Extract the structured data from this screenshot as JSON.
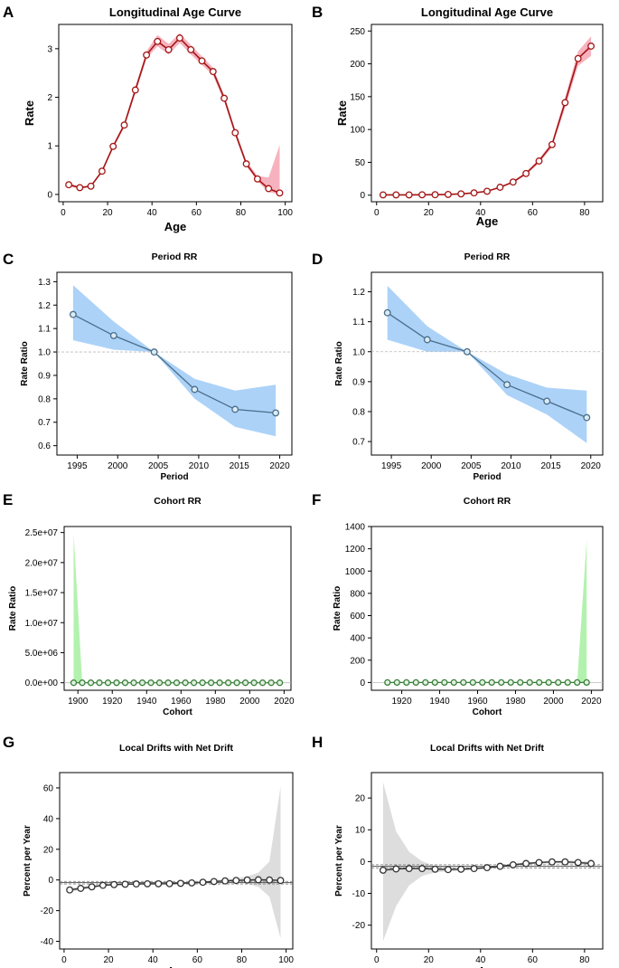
{
  "colors": {
    "age_line": "#a31515",
    "age_band": "#f4a6b4",
    "period_line": "#4a6e8a",
    "period_band": "#9ecaf7",
    "period_point_fill": "#dceaf3",
    "cohort_line": "#3a7f3a",
    "cohort_band": "#a6f0a0",
    "cohort_point_fill": "#e2f1e2",
    "drift_line": "#333333",
    "drift_band": "#dddddd",
    "ref_line": "#bbbbbb"
  },
  "chart_data": [
    {
      "panel": "A",
      "type": "line",
      "title": "Longitudinal Age Curve",
      "xlabel": "Age",
      "ylabel": "Rate",
      "xlim": [
        -2,
        103
      ],
      "ylim": [
        -0.15,
        3.5
      ],
      "xticks": [
        0,
        20,
        40,
        60,
        80,
        100
      ],
      "yticks": [
        0,
        1,
        2,
        3
      ],
      "ytick_labels": [
        "0",
        "1",
        "2",
        "3"
      ],
      "x": [
        2.5,
        7.5,
        12.5,
        17.5,
        22.5,
        27.5,
        32.5,
        37.5,
        42.5,
        47.5,
        52.5,
        57.5,
        62.5,
        67.5,
        72.5,
        77.5,
        82.5,
        87.5,
        92.5,
        97.5
      ],
      "y": [
        0.2,
        0.14,
        0.17,
        0.48,
        0.99,
        1.43,
        2.15,
        2.87,
        3.15,
        2.98,
        3.22,
        2.98,
        2.75,
        2.53,
        1.98,
        1.27,
        0.63,
        0.32,
        0.12,
        0.03
      ],
      "lower": [
        0.17,
        0.12,
        0.15,
        0.45,
        0.95,
        1.38,
        2.08,
        2.8,
        3.05,
        2.88,
        3.12,
        2.88,
        2.67,
        2.45,
        1.91,
        1.21,
        0.58,
        0.27,
        0.05,
        0.0
      ],
      "upper": [
        0.23,
        0.16,
        0.19,
        0.51,
        1.03,
        1.48,
        2.22,
        2.95,
        3.28,
        3.1,
        3.32,
        3.08,
        2.84,
        2.61,
        2.05,
        1.33,
        0.69,
        0.38,
        0.35,
        1.02
      ]
    },
    {
      "panel": "B",
      "type": "line",
      "title": "Longitudinal Age Curve",
      "xlabel": "Age",
      "ylabel": "Rate",
      "xlim": [
        -2,
        87
      ],
      "ylim": [
        -10,
        260
      ],
      "xticks": [
        0,
        20,
        40,
        60,
        80
      ],
      "yticks": [
        0,
        50,
        100,
        150,
        200,
        250
      ],
      "ytick_labels": [
        "0",
        "50",
        "100",
        "150",
        "200",
        "250"
      ],
      "x": [
        2.5,
        7.5,
        12.5,
        17.5,
        22.5,
        27.5,
        32.5,
        37.5,
        42.5,
        47.5,
        52.5,
        57.5,
        62.5,
        67.5,
        72.5,
        77.5,
        82.5
      ],
      "y": [
        0.5,
        0.5,
        0.5,
        0.6,
        0.8,
        1.2,
        2,
        3.5,
        6,
        12,
        20,
        33,
        52,
        77,
        141,
        208,
        227
      ],
      "lower": [
        0.3,
        0.3,
        0.3,
        0.4,
        0.6,
        1.0,
        1.7,
        3.0,
        5.3,
        11,
        18.5,
        31,
        49,
        73,
        133,
        197,
        212
      ],
      "upper": [
        0.7,
        0.7,
        0.7,
        0.8,
        1.0,
        1.4,
        2.3,
        4.0,
        6.7,
        13,
        21.5,
        35,
        55,
        81,
        149,
        219,
        242
      ]
    },
    {
      "panel": "C",
      "type": "line",
      "title": "Period RR",
      "xlabel": "Period",
      "ylabel": "Rate Ratio",
      "xlim": [
        1992.5,
        2021.5
      ],
      "ylim": [
        0.56,
        1.34
      ],
      "xticks": [
        1995,
        2000,
        2005,
        2010,
        2015,
        2020
      ],
      "yticks": [
        0.6,
        0.7,
        0.8,
        0.9,
        1.0,
        1.1,
        1.2,
        1.3
      ],
      "ytick_labels": [
        "0.6",
        "0.7",
        "0.8",
        "0.9",
        "1.0",
        "1.1",
        "1.2",
        "1.3"
      ],
      "reference_line": 1.0,
      "x": [
        1994.5,
        1999.5,
        2004.5,
        2009.5,
        2014.5,
        2019.5
      ],
      "y": [
        1.16,
        1.07,
        1.0,
        0.84,
        0.755,
        0.74
      ],
      "lower": [
        1.05,
        1.01,
        1.0,
        0.8,
        0.68,
        0.64
      ],
      "upper": [
        1.285,
        1.13,
        1.0,
        0.885,
        0.835,
        0.86
      ]
    },
    {
      "panel": "D",
      "type": "line",
      "title": "Period RR",
      "xlabel": "Period",
      "ylabel": "Rate Ratio",
      "xlim": [
        1992.5,
        2021.5
      ],
      "ylim": [
        0.655,
        1.265
      ],
      "xticks": [
        1995,
        2000,
        2005,
        2010,
        2015,
        2020
      ],
      "yticks": [
        0.7,
        0.8,
        0.9,
        1.0,
        1.1,
        1.2
      ],
      "ytick_labels": [
        "0.7",
        "0.8",
        "0.9",
        "1.0",
        "1.1",
        "1.2"
      ],
      "reference_line": 1.0,
      "x": [
        1994.5,
        1999.5,
        2004.5,
        2009.5,
        2014.5,
        2019.5
      ],
      "y": [
        1.13,
        1.04,
        1.0,
        0.89,
        0.835,
        0.78
      ],
      "lower": [
        1.04,
        1.0,
        1.0,
        0.855,
        0.79,
        0.695
      ],
      "upper": [
        1.22,
        1.085,
        1.0,
        0.925,
        0.88,
        0.87
      ]
    },
    {
      "panel": "E",
      "type": "line",
      "title": "Cohort RR",
      "xlabel": "Cohort",
      "ylabel": "Rate Ratio",
      "xlim": [
        1892,
        2024
      ],
      "ylim": [
        -1250000,
        26000000
      ],
      "xticks": [
        1900,
        1920,
        1940,
        1960,
        1980,
        2000,
        2020
      ],
      "yticks": [
        0,
        5000000,
        10000000,
        15000000,
        20000000,
        25000000
      ],
      "ytick_labels": [
        "0.0e+00",
        "5.0e+06",
        "1.0e+07",
        "1.5e+07",
        "2.0e+07",
        "2.5e+07"
      ],
      "reference_line": 0,
      "x": [
        1897.5,
        1902.5,
        1907.5,
        1912.5,
        1917.5,
        1922.5,
        1927.5,
        1932.5,
        1937.5,
        1942.5,
        1947.5,
        1952.5,
        1957.5,
        1962.5,
        1967.5,
        1972.5,
        1977.5,
        1982.5,
        1987.5,
        1992.5,
        1997.5,
        2002.5,
        2007.5,
        2012.5,
        2017.5
      ],
      "y": [
        0,
        0,
        0,
        0,
        0,
        0,
        0,
        0,
        0,
        0,
        0,
        0,
        0,
        0,
        0,
        0,
        0,
        0,
        0,
        0,
        0,
        0,
        0,
        0,
        0
      ],
      "lower": [
        0,
        0,
        0,
        0,
        0,
        0,
        0,
        0,
        0,
        0,
        0,
        0,
        0,
        0,
        0,
        0,
        0,
        0,
        0,
        0,
        0,
        0,
        0,
        0,
        0
      ],
      "upper": [
        24800000,
        0,
        0,
        0,
        0,
        0,
        0,
        0,
        0,
        0,
        0,
        0,
        0,
        0,
        0,
        0,
        0,
        0,
        0,
        0,
        0,
        0,
        0,
        0,
        0
      ]
    },
    {
      "panel": "F",
      "type": "line",
      "title": "Cohort RR",
      "xlabel": "Cohort",
      "ylabel": "Rate Ratio",
      "xlim": [
        1904,
        2026
      ],
      "ylim": [
        -70,
        1400
      ],
      "xticks": [
        1920,
        1940,
        1960,
        1980,
        2000,
        2020
      ],
      "yticks": [
        0,
        200,
        400,
        600,
        800,
        1000,
        1200,
        1400
      ],
      "ytick_labels": [
        "0",
        "200",
        "400",
        "600",
        "800",
        "1000",
        "1200",
        "1400"
      ],
      "reference_line": 0,
      "x": [
        1912.5,
        1917.5,
        1922.5,
        1927.5,
        1932.5,
        1937.5,
        1942.5,
        1947.5,
        1952.5,
        1957.5,
        1962.5,
        1967.5,
        1972.5,
        1977.5,
        1982.5,
        1987.5,
        1992.5,
        1997.5,
        2002.5,
        2007.5,
        2012.5,
        2017.5
      ],
      "y": [
        0,
        0,
        0,
        0,
        0,
        0,
        0,
        0,
        0,
        0,
        0,
        0,
        0,
        0,
        0,
        0,
        0,
        0,
        0,
        0,
        0,
        0
      ],
      "lower": [
        0,
        0,
        0,
        0,
        0,
        0,
        0,
        0,
        0,
        0,
        0,
        0,
        0,
        0,
        0,
        0,
        0,
        0,
        0,
        0,
        0,
        0
      ],
      "upper": [
        0,
        0,
        0,
        0,
        0,
        0,
        0,
        0,
        0,
        0,
        0,
        0,
        0,
        0,
        0,
        0,
        0,
        0,
        0,
        0,
        0,
        1280
      ]
    },
    {
      "panel": "G",
      "type": "line",
      "title": "Local Drifts with Net Drift",
      "xlabel": "Age",
      "ylabel": "Percent per Year",
      "xlim": [
        -2,
        103
      ],
      "ylim": [
        -45,
        70
      ],
      "xticks": [
        0,
        20,
        40,
        60,
        80,
        100
      ],
      "yticks": [
        -40,
        -20,
        0,
        20,
        40,
        60
      ],
      "ytick_labels": [
        "-40",
        "-20",
        "0",
        "20",
        "40",
        "60"
      ],
      "net_drift": -1.7,
      "net_drift_ci": [
        -2.6,
        -0.9
      ],
      "x": [
        2.5,
        7.5,
        12.5,
        17.5,
        22.5,
        27.5,
        32.5,
        37.5,
        42.5,
        47.5,
        52.5,
        57.5,
        62.5,
        67.5,
        72.5,
        77.5,
        82.5,
        87.5,
        92.5,
        97.5
      ],
      "y": [
        -6.5,
        -5.5,
        -4.5,
        -3.5,
        -3.0,
        -2.8,
        -2.6,
        -2.5,
        -2.5,
        -2.4,
        -2.2,
        -1.9,
        -1.5,
        -1.0,
        -0.6,
        -0.3,
        0.0,
        0.1,
        0.0,
        -0.3
      ],
      "lower": [
        -7.8,
        -6.6,
        -5.4,
        -4.3,
        -3.7,
        -3.4,
        -3.2,
        -3.1,
        -3.1,
        -3.0,
        -2.8,
        -2.6,
        -2.3,
        -1.9,
        -1.7,
        -1.8,
        -2.2,
        -4.5,
        -11,
        -38
      ],
      "upper": [
        -5.2,
        -4.4,
        -3.6,
        -2.7,
        -2.3,
        -2.2,
        -2.0,
        -1.9,
        -1.9,
        -1.8,
        -1.6,
        -1.2,
        -0.7,
        -0.1,
        0.5,
        1.2,
        2.3,
        4.8,
        12,
        61
      ]
    },
    {
      "panel": "H",
      "type": "line",
      "title": "Local Drifts with Net Drift",
      "xlabel": "Age",
      "ylabel": "Percent per Year",
      "xlim": [
        -2,
        87
      ],
      "ylim": [
        -27.5,
        28
      ],
      "xticks": [
        0,
        20,
        40,
        60,
        80
      ],
      "yticks": [
        -20,
        -10,
        0,
        10,
        20
      ],
      "ytick_labels": [
        "-20",
        "-10",
        "0",
        "10",
        "20"
      ],
      "net_drift": -1.5,
      "net_drift_ci": [
        -2.0,
        -1.0
      ],
      "x": [
        2.5,
        7.5,
        12.5,
        17.5,
        22.5,
        27.5,
        32.5,
        37.5,
        42.5,
        47.5,
        52.5,
        57.5,
        62.5,
        67.5,
        72.5,
        77.5,
        82.5
      ],
      "y": [
        -2.7,
        -2.3,
        -2.2,
        -2.2,
        -2.4,
        -2.5,
        -2.4,
        -2.2,
        -1.9,
        -1.5,
        -1.0,
        -0.6,
        -0.3,
        -0.1,
        -0.1,
        -0.3,
        -0.6
      ],
      "lower": [
        -25,
        -14,
        -7.5,
        -4.5,
        -3.4,
        -3.1,
        -2.9,
        -2.6,
        -2.3,
        -1.9,
        -1.4,
        -1.0,
        -0.7,
        -0.5,
        -0.6,
        -0.8,
        -1.2
      ],
      "upper": [
        25,
        9.5,
        3.1,
        0.1,
        -1.4,
        -1.9,
        -1.9,
        -1.8,
        -1.5,
        -1.1,
        -0.6,
        -0.2,
        0.1,
        0.3,
        0.4,
        0.2,
        0.0
      ]
    }
  ]
}
